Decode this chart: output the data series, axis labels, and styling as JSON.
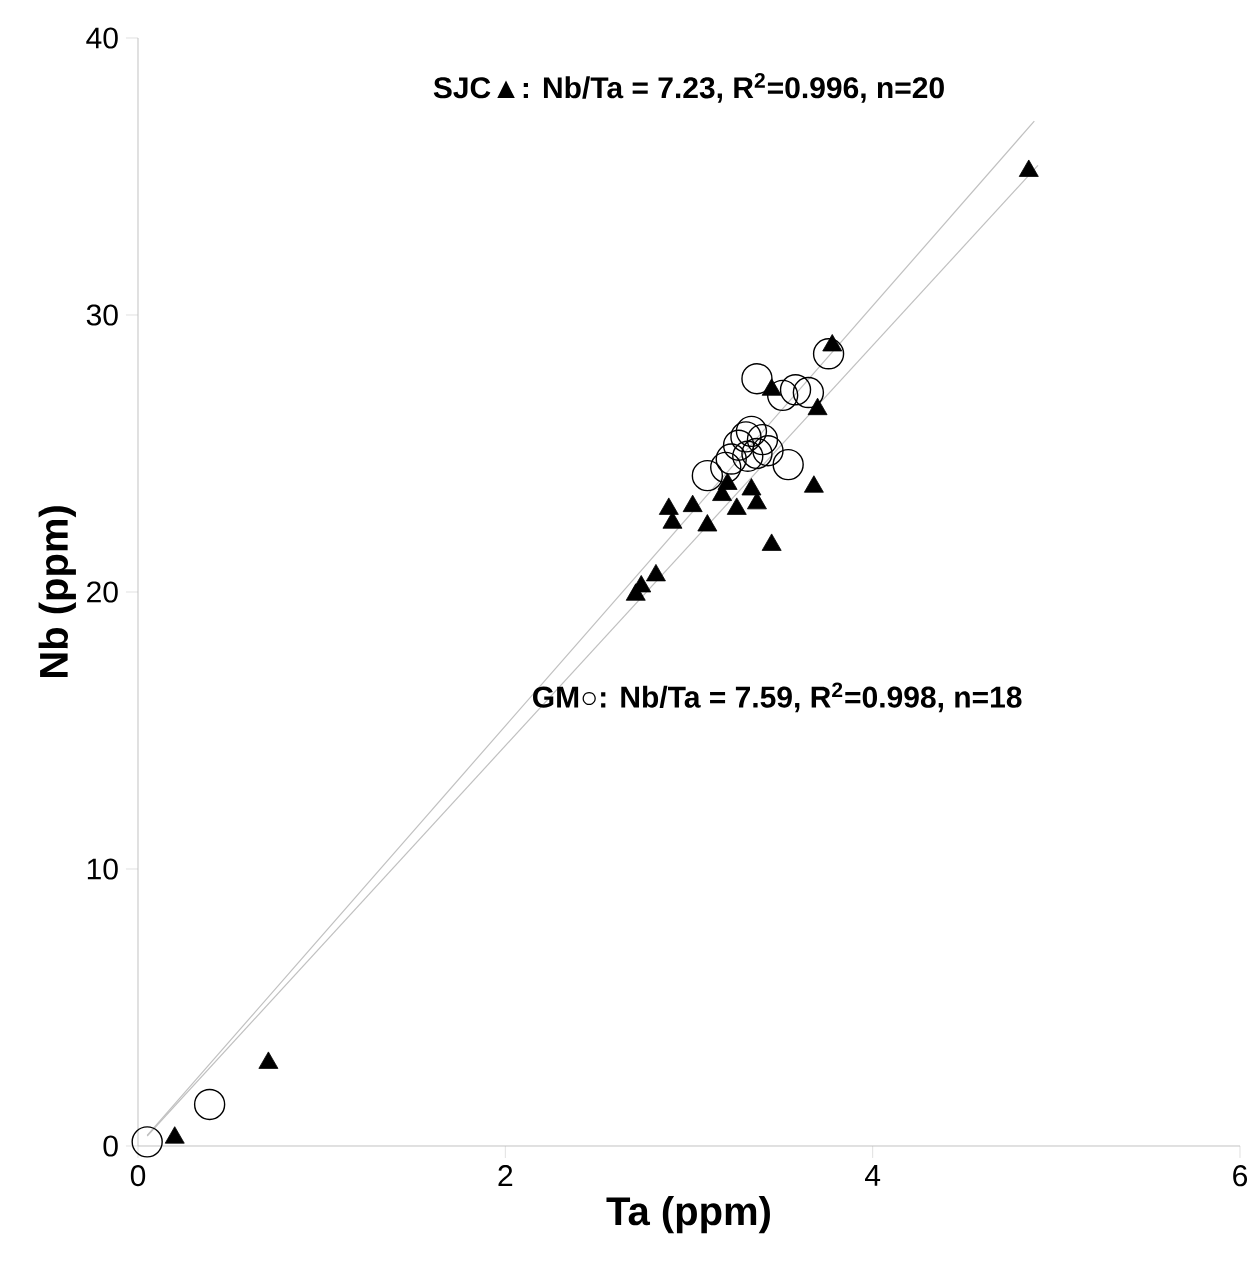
{
  "chart_data": {
    "type": "scatter",
    "xlabel": "Ta (ppm)",
    "ylabel": "Nb (ppm)",
    "xlim": [
      0,
      6
    ],
    "ylim": [
      0,
      40
    ],
    "xticks": [
      0,
      2,
      4,
      6
    ],
    "yticks": [
      0,
      10,
      20,
      30,
      40
    ],
    "grid": false,
    "annotations": [
      "SJC▲: Nb/Ta = 7.23, R$^{2}$=0.996, n=20",
      "GM○: Nb/Ta = 7.59, R$^{2}$=0.998, n=18"
    ],
    "series": [
      {
        "type": "line",
        "color": "#c0c0c0",
        "marker": "none",
        "x": [
          0.05,
          4.9
        ],
        "values": [
          0.36,
          35.4
        ]
      },
      {
        "type": "line",
        "color": "#c0c0c0",
        "marker": "none",
        "x": [
          0.05,
          4.88
        ],
        "values": [
          0.38,
          37.0
        ]
      },
      {
        "color": "#000000",
        "marker": "triangle",
        "x": [
          0.2,
          0.71,
          4.85,
          3.78,
          3.45,
          3.7,
          3.68,
          3.21,
          3.37,
          3.26,
          3.02,
          2.89,
          2.91,
          3.1,
          3.45,
          2.82,
          2.74,
          2.71,
          3.18,
          3.34
        ],
        "values": [
          0.3,
          3.0,
          35.2,
          28.9,
          27.3,
          26.6,
          23.8,
          23.9,
          23.2,
          23.0,
          23.1,
          23.0,
          22.5,
          22.4,
          21.7,
          20.6,
          20.2,
          19.9,
          23.5,
          23.7
        ]
      },
      {
        "color": "#000000",
        "marker": "circle",
        "x": [
          0.05,
          0.39,
          3.76,
          3.37,
          3.58,
          3.65,
          3.51,
          3.34,
          3.31,
          3.4,
          3.27,
          3.43,
          3.23,
          3.54,
          3.32,
          3.1,
          3.2,
          3.37
        ],
        "values": [
          0.15,
          1.5,
          28.6,
          27.7,
          27.3,
          27.2,
          27.1,
          25.8,
          25.6,
          25.5,
          25.3,
          25.1,
          24.8,
          24.6,
          24.9,
          24.2,
          24.5,
          25.0
        ]
      }
    ]
  }
}
